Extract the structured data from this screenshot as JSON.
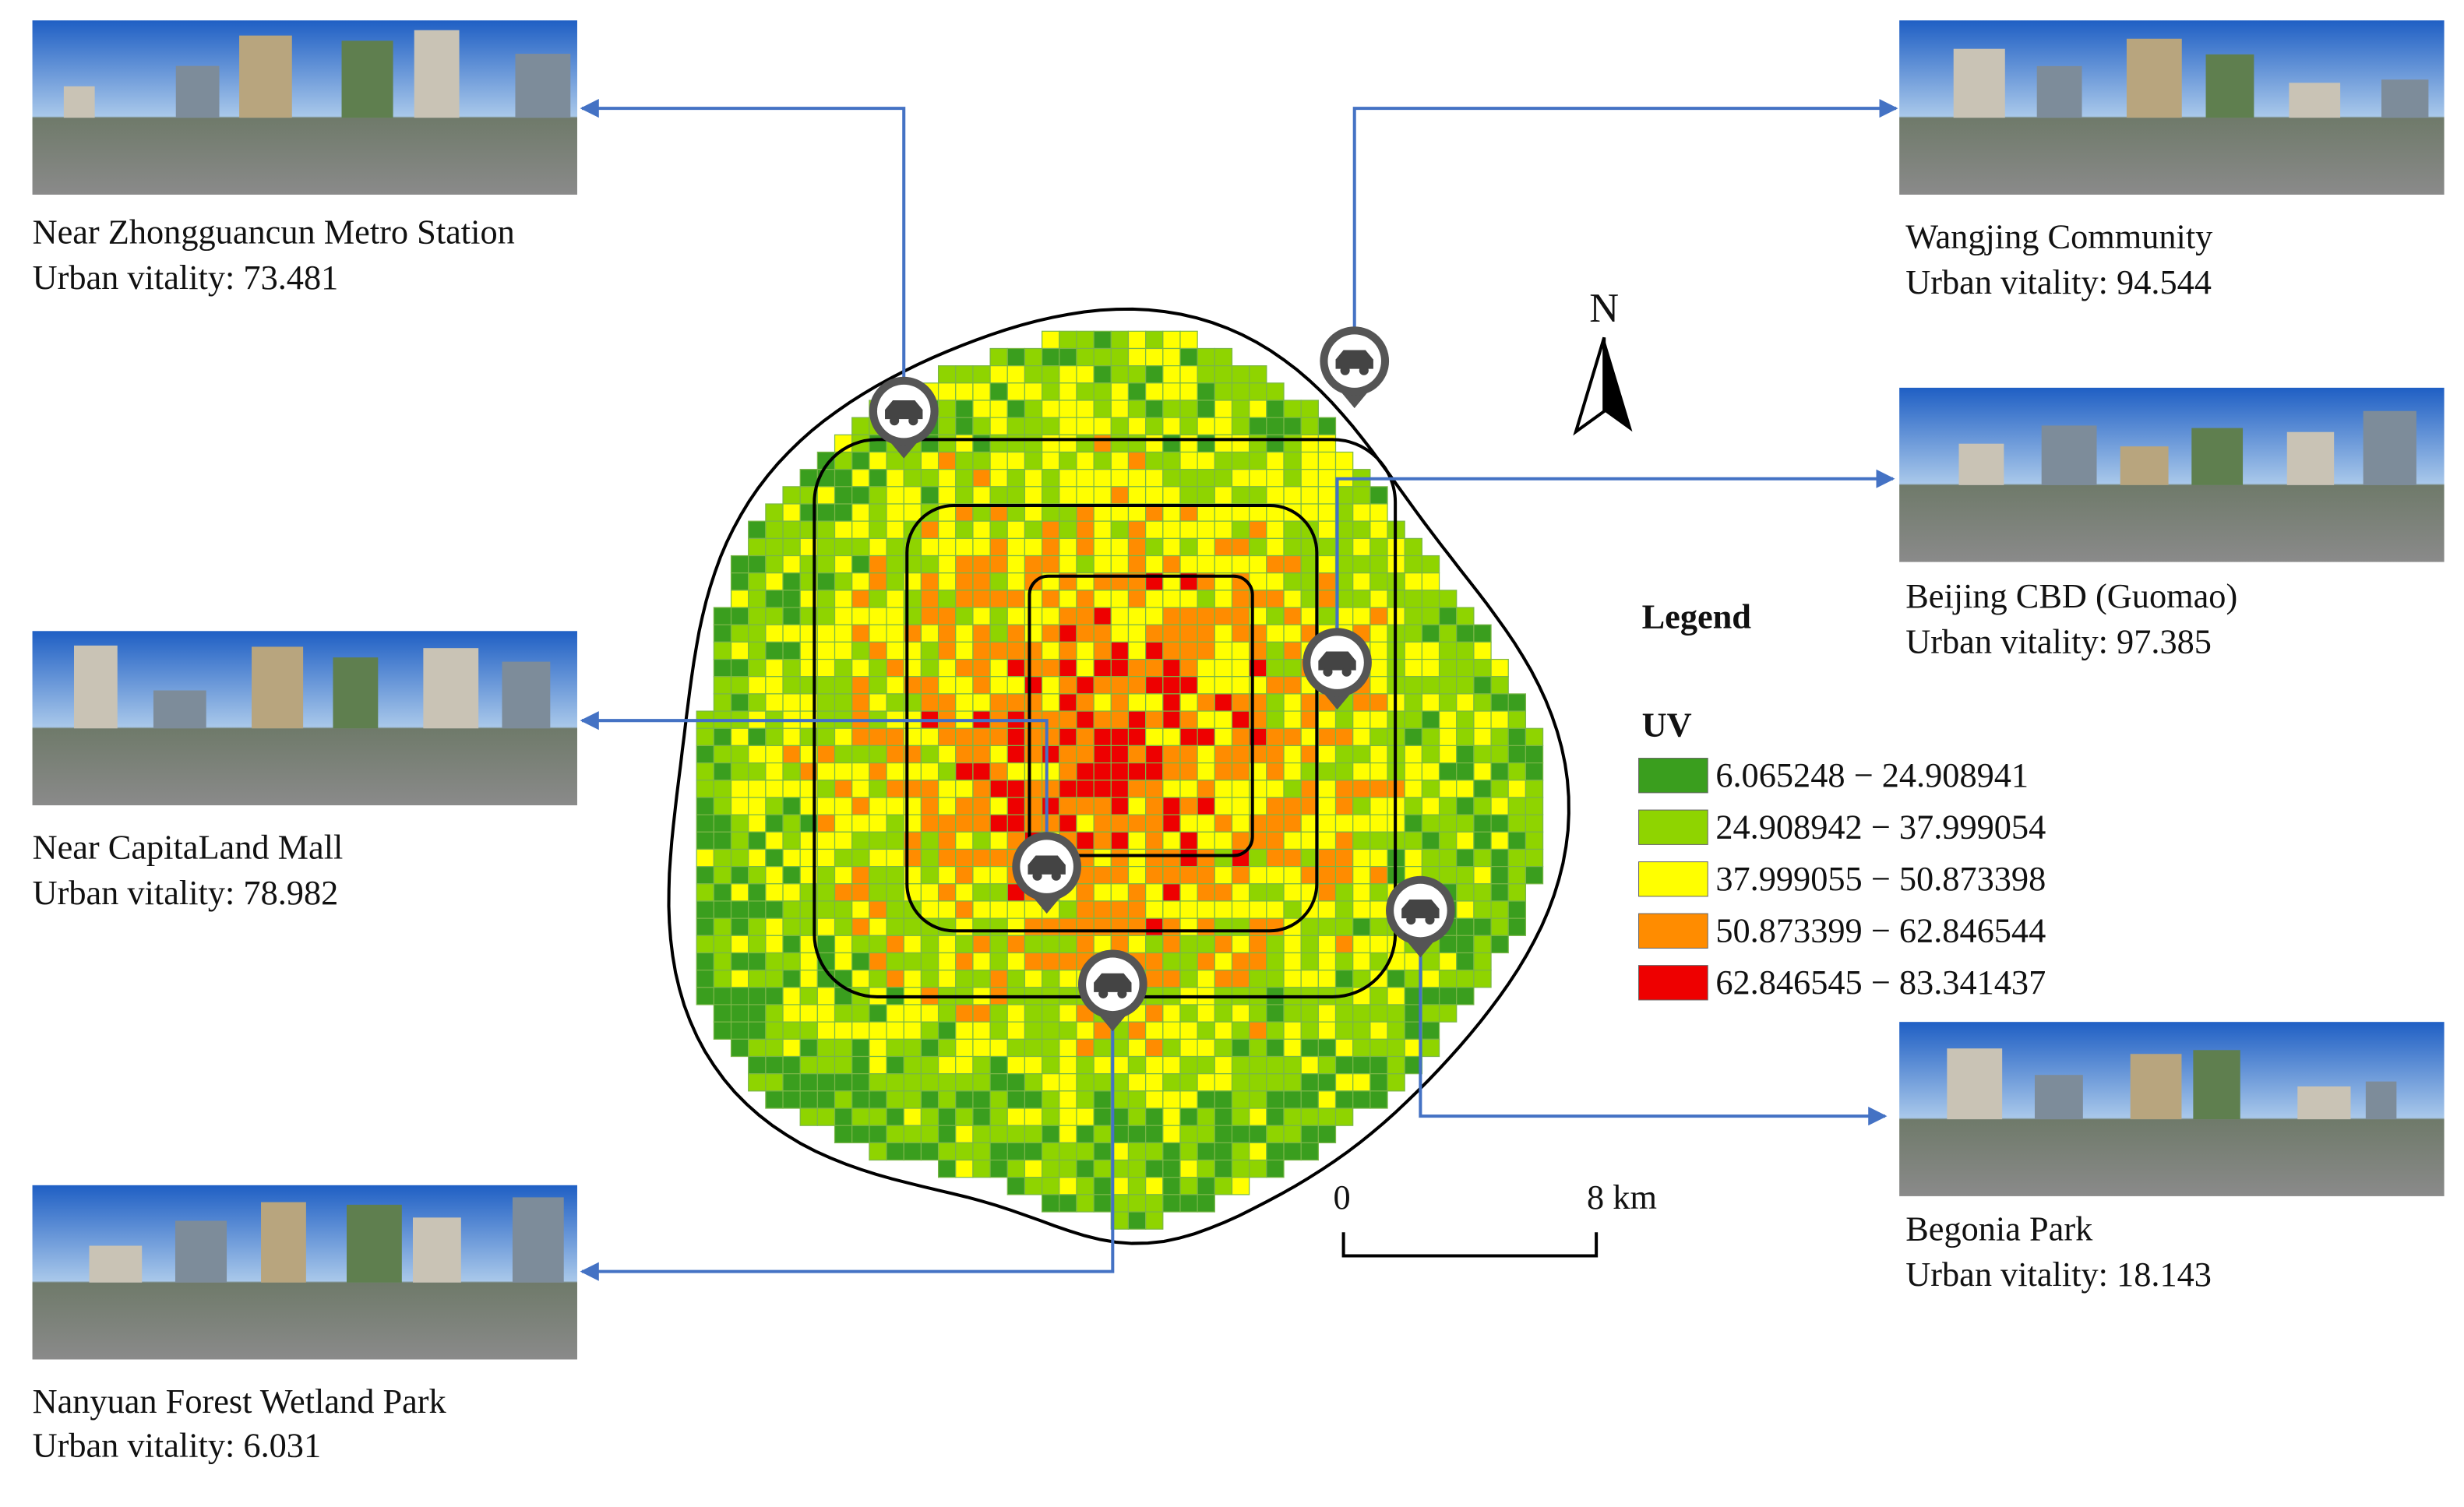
{
  "panels": [
    {
      "label": "Near Zhongguancun Metro Station",
      "vitality": "Urban vitality: 73.481"
    },
    {
      "label": "Near CapitaLand Mall",
      "vitality": "Urban vitality: 78.982"
    },
    {
      "label": "Nanyuan Forest Wetland Park",
      "vitality": "Urban vitality: 6.031"
    },
    {
      "label": "Wangjing Community",
      "vitality": "Urban vitality: 94.544"
    },
    {
      "label": "Beijing CBD (Guomao)",
      "vitality": "Urban vitality: 97.385"
    },
    {
      "label": "Begonia Park",
      "vitality": "Urban vitality: 18.143"
    }
  ],
  "legend": {
    "heading": "Legend",
    "title": "UV",
    "classes": [
      {
        "label": "6.065248 − 24.908941",
        "color": "#3a9e1e"
      },
      {
        "label": "24.908942 − 37.999054",
        "color": "#8fd400"
      },
      {
        "label": "37.999055 − 50.873398",
        "color": "#ffff00"
      },
      {
        "label": "50.873399 − 62.846544",
        "color": "#ff8c00"
      },
      {
        "label": "62.846545 − 83.341437",
        "color": "#ee0000"
      }
    ]
  },
  "north": "N",
  "scale": {
    "start": "0",
    "end": "8 km"
  }
}
